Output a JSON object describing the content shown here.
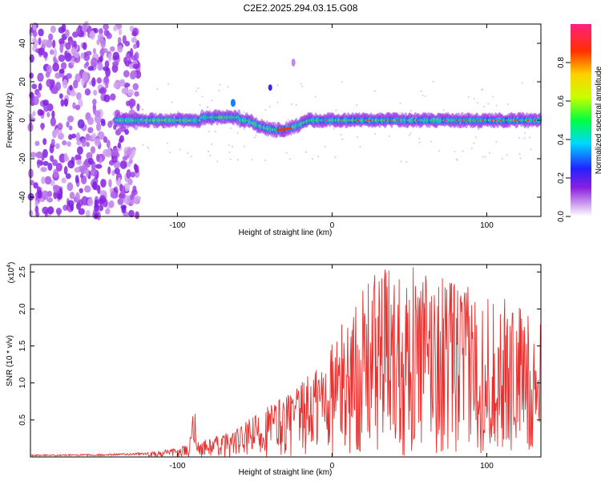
{
  "title": "C2E2.2025.294.03.15.G08",
  "chart_data": [
    {
      "type": "heatmap",
      "name": "spectrogram",
      "xlabel": "Height of straight line (km)",
      "ylabel": "Frequency (Hz)",
      "xlim": [
        -195,
        135
      ],
      "ylim": [
        -50,
        50
      ],
      "xticks": [
        -100,
        0,
        100
      ],
      "yticks": [
        -40,
        -20,
        0,
        20,
        40
      ],
      "signal_band_hz": 0,
      "noise_region_km": [
        -195,
        -125
      ],
      "colorbar": {
        "label": "Normalized spectral amplitude",
        "range": [
          0,
          1
        ],
        "ticks": [
          "0.0",
          "0.2",
          "0.4",
          "0.6",
          "0.8"
        ],
        "tick_values": [
          0.0,
          0.2,
          0.4,
          0.6,
          0.8
        ]
      }
    },
    {
      "type": "line",
      "name": "snr",
      "xlabel": "Height of straight line (km)",
      "ylabel": "SNR (10 * v/v)",
      "y_multiplier": "(x10",
      "y_multiplier_exp": "4",
      "xlim": [
        -195,
        135
      ],
      "ylim": [
        0,
        2.6
      ],
      "xticks": [
        -100,
        0,
        100
      ],
      "yticks": [
        0.5,
        1.0,
        1.5,
        2.0,
        2.5
      ],
      "ytick_labels": [
        "0.5",
        "1.0",
        "1.5",
        "2.0",
        "2.5"
      ],
      "line_color": "#e8302e",
      "envelope_km": [
        -195,
        -150,
        -120,
        -100,
        -80,
        -60,
        -40,
        -20,
        0,
        15,
        30,
        45,
        60,
        80,
        100,
        120,
        135
      ],
      "envelope_snr_x1e4": [
        0.03,
        0.04,
        0.06,
        0.12,
        0.25,
        0.4,
        0.75,
        1.0,
        1.6,
        2.1,
        2.6,
        2.6,
        2.55,
        2.4,
        2.2,
        2.1,
        1.8
      ]
    }
  ],
  "colors": {
    "line": "#e8302e",
    "axis": "#000000"
  }
}
